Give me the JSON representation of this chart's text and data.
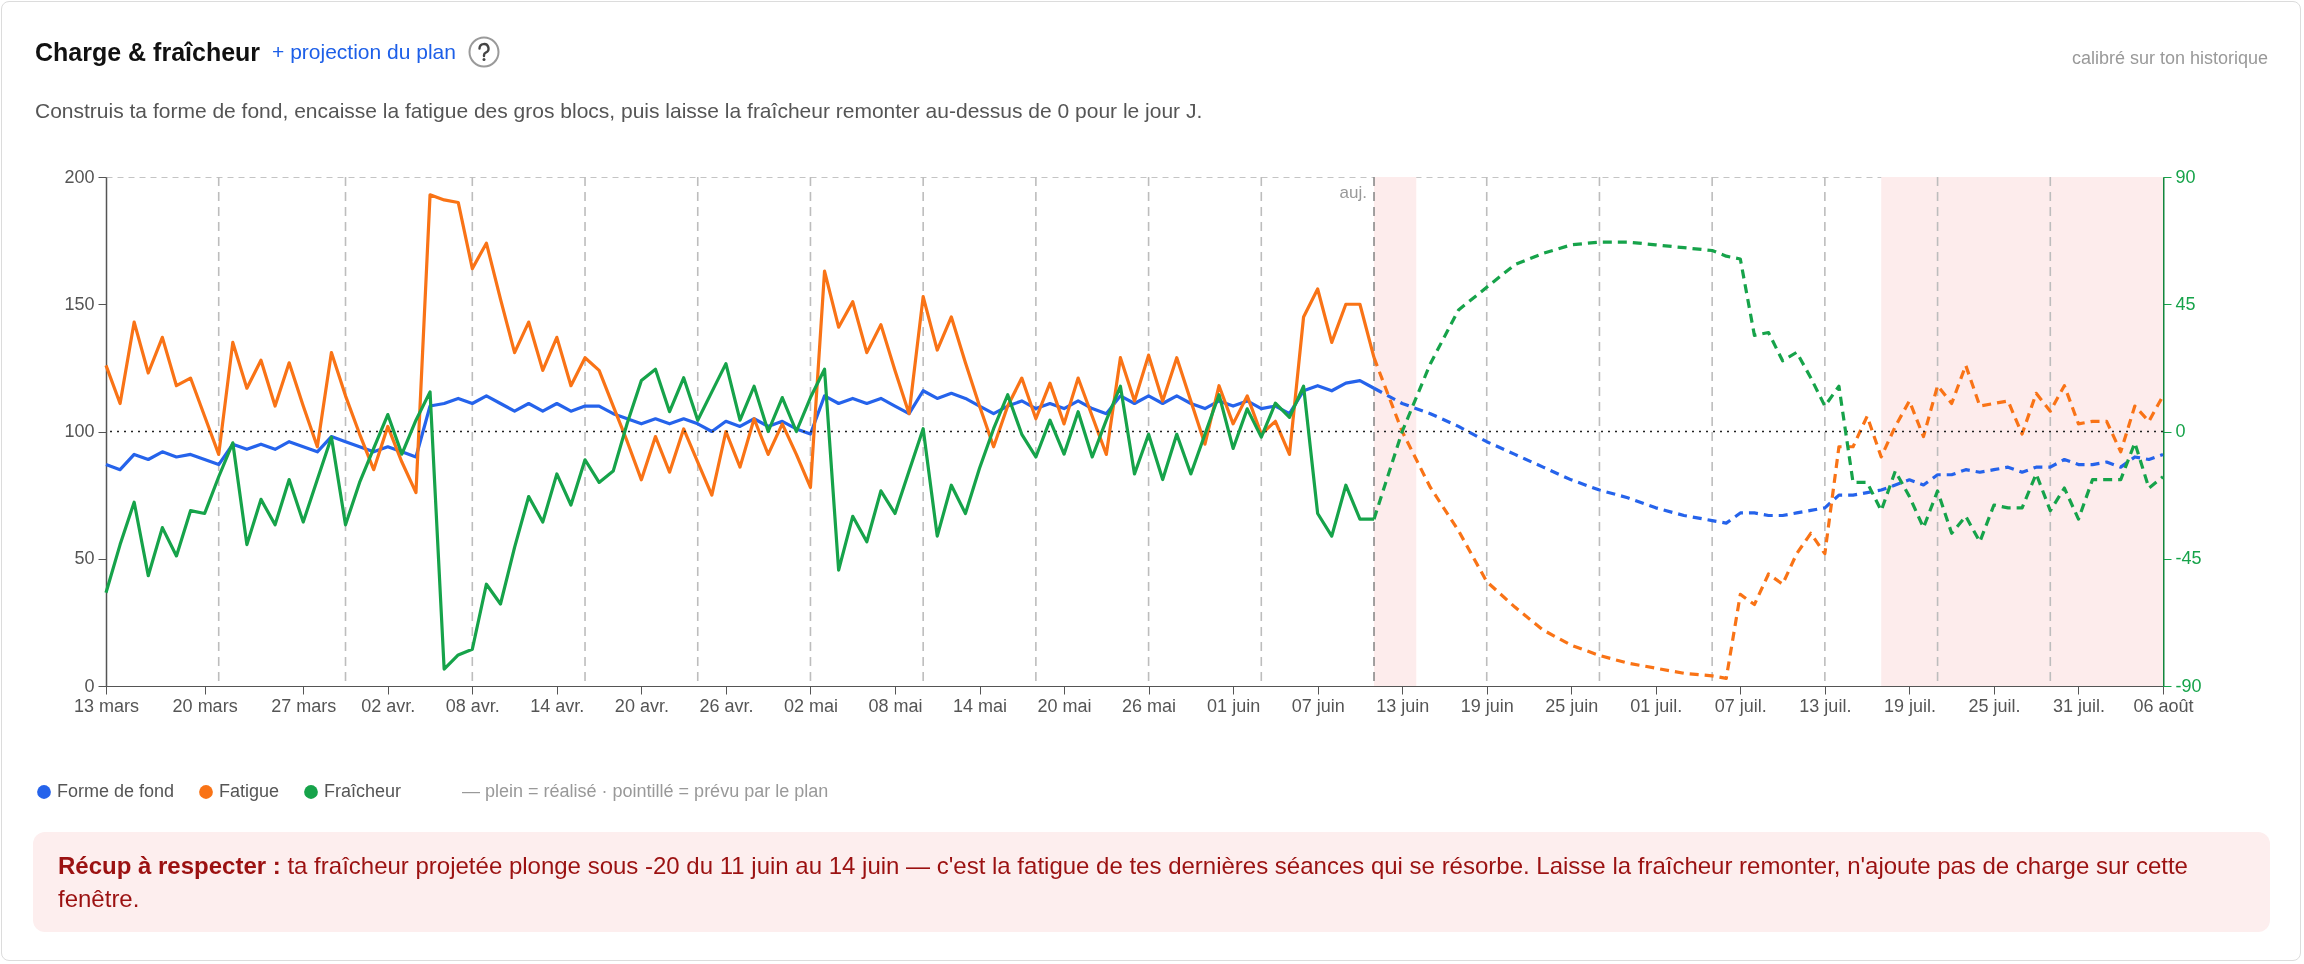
{
  "chart_data": {
    "type": "line",
    "title": "Charge & fraîcheur",
    "subtitle": "Construis ta forme de fond, encaisse la fatigue des gros blocs, puis laisse la fraîcheur remonter au-dessus de 0 pour le jour J.",
    "annotations": [
      "+ projection du plan",
      "calibré sur ton historique",
      "— plein = réalisé · pointillé = prévu par le plan",
      "Récup à respecter :",
      "ta fraîcheur projetée plonge sous -20 du 11 juin au 14 juin — c'est la fatigue de tes dernières séances qui se résorbe. Laisse la fraîcheur remonter, n'ajoute pas de charge sur cette fenêtre."
    ],
    "legend": "bottom left",
    "xlim": [
      "--03-13",
      "--08-06"
    ],
    "xticks": [
      {
        "value": "--03-13",
        "label": "13 mars"
      },
      {
        "value": "--03-20",
        "label": "20 mars"
      },
      {
        "value": "--03-27",
        "label": "27 mars"
      },
      {
        "value": "--04-02",
        "label": "02 avr."
      },
      {
        "value": "--04-08",
        "label": "08 avr."
      },
      {
        "value": "--04-14",
        "label": "14 avr."
      },
      {
        "value": "--04-20",
        "label": "20 avr."
      },
      {
        "value": "--04-26",
        "label": "26 avr."
      },
      {
        "value": "--05-02",
        "label": "02 mai"
      },
      {
        "value": "--05-08",
        "label": "08 mai"
      },
      {
        "value": "--05-14",
        "label": "14 mai"
      },
      {
        "value": "--05-20",
        "label": "20 mai"
      },
      {
        "value": "--05-26",
        "label": "26 mai"
      },
      {
        "value": "--06-01",
        "label": "01 juin"
      },
      {
        "value": "--06-07",
        "label": "07 juin"
      },
      {
        "value": "--06-13",
        "label": "13 juin"
      },
      {
        "value": "--06-19",
        "label": "19 juin"
      },
      {
        "value": "--06-25",
        "label": "25 juin"
      },
      {
        "value": "--07-01",
        "label": "01 juil."
      },
      {
        "value": "--07-07",
        "label": "07 juil."
      },
      {
        "value": "--07-13",
        "label": "13 juil."
      },
      {
        "value": "--07-19",
        "label": "19 juil."
      },
      {
        "value": "--07-25",
        "label": "25 juil."
      },
      {
        "value": "--07-31",
        "label": "31 juil."
      },
      {
        "value": "--08-06",
        "label": "06 août"
      }
    ],
    "ylim": [
      0,
      200
    ],
    "yticks": [
      0,
      50,
      100,
      150,
      200
    ],
    "y2lim": [
      -90,
      90
    ],
    "y2ticks": [
      -90,
      -45,
      0,
      45,
      90
    ],
    "x": [
      "--03-13",
      "--03-14",
      "--03-15",
      "--03-16",
      "--03-17",
      "--03-18",
      "--03-19",
      "--03-20",
      "--03-21",
      "--03-22",
      "--03-23",
      "--03-24",
      "--03-25",
      "--03-26",
      "--03-27",
      "--03-28",
      "--03-29",
      "--03-30",
      "--03-31",
      "--04-01",
      "--04-02",
      "--04-03",
      "--04-04",
      "--04-05",
      "--04-06",
      "--04-07",
      "--04-08",
      "--04-09",
      "--04-10",
      "--04-11",
      "--04-12",
      "--04-13",
      "--04-14",
      "--04-15",
      "--04-16",
      "--04-17",
      "--04-18",
      "--04-19",
      "--04-20",
      "--04-21",
      "--04-22",
      "--04-23",
      "--04-24",
      "--04-25",
      "--04-26",
      "--04-27",
      "--04-28",
      "--04-29",
      "--04-30",
      "--05-01",
      "--05-02",
      "--05-03",
      "--05-04",
      "--05-05",
      "--05-06",
      "--05-07",
      "--05-08",
      "--05-09",
      "--05-10",
      "--05-11",
      "--05-12",
      "--05-13",
      "--05-14",
      "--05-15",
      "--05-16",
      "--05-17",
      "--05-18",
      "--05-19",
      "--05-20",
      "--05-21",
      "--05-22",
      "--05-23",
      "--05-24",
      "--05-25",
      "--05-26",
      "--05-27",
      "--05-28",
      "--05-29",
      "--05-30",
      "--05-31",
      "--06-01",
      "--06-02",
      "--06-03",
      "--06-04",
      "--06-05",
      "--06-06",
      "--06-07",
      "--06-08",
      "--06-09",
      "--06-10",
      "--06-11"
    ],
    "series": [
      {
        "name": "Forme de fond",
        "color": "#2563eb",
        "line_style": "solid",
        "values": [
          87,
          85,
          91,
          89,
          92,
          90,
          91,
          89,
          87,
          95,
          93,
          95,
          93,
          96,
          94,
          92,
          98,
          96,
          94,
          92,
          94,
          92,
          90,
          110,
          111,
          113,
          111,
          114,
          111,
          108,
          111,
          108,
          111,
          108,
          110,
          110,
          107,
          105,
          103,
          105,
          103,
          105,
          103,
          100,
          104,
          102,
          105,
          102,
          104,
          101,
          99,
          114,
          111,
          113,
          111,
          113,
          110,
          107,
          116,
          113,
          115,
          113,
          110,
          107,
          110,
          112,
          109,
          111,
          109,
          112,
          109,
          107,
          114,
          111,
          114,
          111,
          114,
          111,
          109,
          112,
          110,
          112,
          109,
          110,
          107,
          116,
          118,
          116,
          119,
          120,
          117
        ]
      },
      {
        "name": "Fatigue",
        "color": "#f97316",
        "line_style": "solid",
        "values": [
          126,
          111,
          143,
          123,
          137,
          118,
          121,
          106,
          91,
          135,
          117,
          128,
          110,
          127,
          110,
          94,
          131,
          114,
          99,
          85,
          102,
          88,
          76,
          193,
          191,
          190,
          164,
          174,
          152,
          131,
          143,
          124,
          137,
          118,
          129,
          124,
          110,
          96,
          81,
          98,
          84,
          101,
          88,
          75,
          100,
          86,
          105,
          91,
          103,
          91,
          78,
          163,
          141,
          151,
          131,
          142,
          124,
          107,
          153,
          132,
          145,
          127,
          110,
          94,
          110,
          121,
          105,
          119,
          103,
          121,
          106,
          91,
          129,
          112,
          130,
          112,
          129,
          112,
          95,
          118,
          103,
          114,
          99,
          104,
          91,
          145,
          156,
          135,
          150,
          150,
          129
        ]
      },
      {
        "name": "Fraîcheur",
        "color": "#16a34a",
        "axis": "y2",
        "line_style": "solid",
        "values": [
          -57,
          -40,
          -25,
          -51,
          -34,
          -44,
          -28,
          -29,
          -16,
          -4,
          -40,
          -24,
          -33,
          -17,
          -32,
          -17,
          -2,
          -33,
          -18,
          -6,
          6,
          -8,
          4,
          14,
          -84,
          -79,
          -77,
          -54,
          -61,
          -41,
          -23,
          -32,
          -15,
          -26,
          -10,
          -18,
          -14,
          3,
          18,
          22,
          7,
          19,
          4,
          14,
          24,
          4,
          16,
          0,
          12,
          0,
          12,
          22,
          -49,
          -30,
          -39,
          -21,
          -29,
          -14,
          1,
          -37,
          -19,
          -29,
          -13,
          1,
          13,
          -1,
          -9,
          4,
          -8,
          7,
          -9,
          4,
          16,
          -15,
          -1,
          -17,
          -1,
          -15,
          -1,
          13,
          -6,
          8,
          -2,
          10,
          5,
          16,
          -29,
          -37,
          -19,
          -31,
          -31
        ]
      },
      {
        "color": "#2563eb",
        "line_style": "dashed",
        "x": [
          "--06-11",
          "--06-13",
          "--06-15",
          "--06-17",
          "--06-19",
          "--06-21",
          "--06-23",
          "--06-25",
          "--06-27",
          "--06-29",
          "--07-01",
          "--07-03",
          "--07-05",
          "--07-06",
          "--07-07",
          "--07-08",
          "--07-09",
          "--07-10",
          "--07-11",
          "--07-12",
          "--07-13",
          "--07-14",
          "--07-15",
          "--07-16",
          "--07-17",
          "--07-18",
          "--07-19",
          "--07-20",
          "--07-21",
          "--07-22",
          "--07-23",
          "--07-24",
          "--07-25",
          "--07-26",
          "--07-27",
          "--07-28",
          "--07-29",
          "--07-30",
          "--07-31",
          "--08-01",
          "--08-02",
          "--08-03",
          "--08-04",
          "--08-05",
          "--08-06"
        ],
        "values": [
          117,
          111,
          107,
          102,
          96,
          91,
          86,
          81,
          77,
          74,
          70,
          67,
          65,
          64,
          68,
          68,
          67,
          67,
          68,
          69,
          70,
          75,
          75,
          76,
          77,
          79,
          81,
          79,
          83,
          83,
          85,
          84,
          85,
          86,
          84,
          86,
          86,
          89,
          87,
          87,
          88,
          86,
          90,
          89,
          91
        ]
      },
      {
        "color": "#f97316",
        "line_style": "dashed",
        "x": [
          "--06-11",
          "--06-13",
          "--06-15",
          "--06-17",
          "--06-19",
          "--06-21",
          "--06-23",
          "--06-25",
          "--06-27",
          "--06-29",
          "--07-01",
          "--07-03",
          "--07-05",
          "--07-06",
          "--07-07",
          "--07-08",
          "--07-09",
          "--07-10",
          "--07-11",
          "--07-12",
          "--07-13",
          "--07-14",
          "--07-15",
          "--07-16",
          "--07-17",
          "--07-18",
          "--07-19",
          "--07-20",
          "--07-21",
          "--07-22",
          "--07-23",
          "--07-24",
          "--07-25",
          "--07-26",
          "--07-27",
          "--07-28",
          "--07-29",
          "--07-30",
          "--07-31",
          "--08-01",
          "--08-02",
          "--08-03",
          "--08-04",
          "--08-05",
          "--08-06"
        ],
        "values": [
          129,
          100,
          78,
          61,
          41,
          31,
          22,
          16,
          12,
          9,
          7,
          5,
          4,
          3,
          36,
          32,
          44,
          40,
          52,
          60,
          52,
          94,
          94,
          106,
          90,
          102,
          112,
          98,
          118,
          111,
          126,
          110,
          111,
          112,
          99,
          115,
          108,
          118,
          103,
          104,
          104,
          92,
          110,
          104,
          114
        ]
      },
      {
        "color": "#16a34a",
        "axis": "y2",
        "line_style": "dashed",
        "x": [
          "--06-11",
          "--06-13",
          "--06-15",
          "--06-17",
          "--06-19",
          "--06-21",
          "--06-23",
          "--06-25",
          "--06-27",
          "--06-29",
          "--07-01",
          "--07-03",
          "--07-05",
          "--07-06",
          "--07-07",
          "--07-08",
          "--07-09",
          "--07-10",
          "--07-11",
          "--07-12",
          "--07-13",
          "--07-14",
          "--07-15",
          "--07-16",
          "--07-17",
          "--07-18",
          "--07-19",
          "--07-20",
          "--07-21",
          "--07-22",
          "--07-23",
          "--07-24",
          "--07-25",
          "--07-26",
          "--07-27",
          "--07-28",
          "--07-29",
          "--07-30",
          "--07-31",
          "--08-01",
          "--08-02",
          "--08-03",
          "--08-04",
          "--08-05",
          "--08-06"
        ],
        "values": [
          -31,
          0,
          24,
          43,
          51,
          59,
          63,
          66,
          67,
          67,
          66,
          65,
          64,
          62,
          61,
          34,
          35,
          25,
          28,
          19,
          9,
          16,
          -18,
          -18,
          -28,
          -14,
          -23,
          -34,
          -21,
          -36,
          -30,
          -39,
          -26,
          -27,
          -27,
          -15,
          -28,
          -20,
          -31,
          -17,
          -17,
          -17,
          -4,
          -20,
          -16
        ]
      }
    ],
    "bands": [
      {
        "axis": "x",
        "from": "--06-11",
        "to": "--06-14",
        "color": "#fdecec"
      },
      {
        "axis": "x",
        "from": "--07-17",
        "to": "--08-06",
        "color": "#fdecec"
      }
    ],
    "ref_lines": [
      {
        "axis": "x",
        "value": "--03-21",
        "color": "#bdbdbd",
        "line_style": "dashed"
      },
      {
        "axis": "x",
        "value": "--03-30",
        "color": "#bdbdbd",
        "line_style": "dashed"
      },
      {
        "axis": "x",
        "value": "--04-08",
        "color": "#bdbdbd",
        "line_style": "dashed"
      },
      {
        "axis": "x",
        "value": "--04-16",
        "color": "#bdbdbd",
        "line_style": "dashed"
      },
      {
        "axis": "x",
        "value": "--04-24",
        "color": "#bdbdbd",
        "line_style": "dashed"
      },
      {
        "axis": "x",
        "value": "--05-02",
        "color": "#bdbdbd",
        "line_style": "dashed"
      },
      {
        "axis": "x",
        "value": "--05-10",
        "color": "#bdbdbd",
        "line_style": "dashed"
      },
      {
        "axis": "x",
        "value": "--05-18",
        "color": "#bdbdbd",
        "line_style": "dashed"
      },
      {
        "axis": "x",
        "value": "--05-26",
        "color": "#bdbdbd",
        "line_style": "dashed"
      },
      {
        "axis": "x",
        "value": "--06-03",
        "color": "#bdbdbd",
        "line_style": "dashed"
      },
      {
        "axis": "x",
        "value": "--06-11",
        "label": "auj.",
        "color": "#8a8a8a",
        "line_style": "dashed"
      },
      {
        "axis": "x",
        "value": "--06-19",
        "color": "#bdbdbd",
        "line_style": "dashed"
      },
      {
        "axis": "x",
        "value": "--06-27",
        "color": "#bdbdbd",
        "line_style": "dashed"
      },
      {
        "axis": "x",
        "value": "--07-05",
        "color": "#bdbdbd",
        "line_style": "dashed"
      },
      {
        "axis": "x",
        "value": "--07-13",
        "color": "#bdbdbd",
        "line_style": "dashed"
      },
      {
        "axis": "x",
        "value": "--07-21",
        "color": "#bdbdbd",
        "line_style": "dashed"
      },
      {
        "axis": "x",
        "value": "--07-29",
        "color": "#bdbdbd",
        "line_style": "dashed"
      },
      {
        "axis": "y2",
        "value": 0,
        "color": "#222222",
        "line_style": "dotted"
      }
    ]
  }
}
